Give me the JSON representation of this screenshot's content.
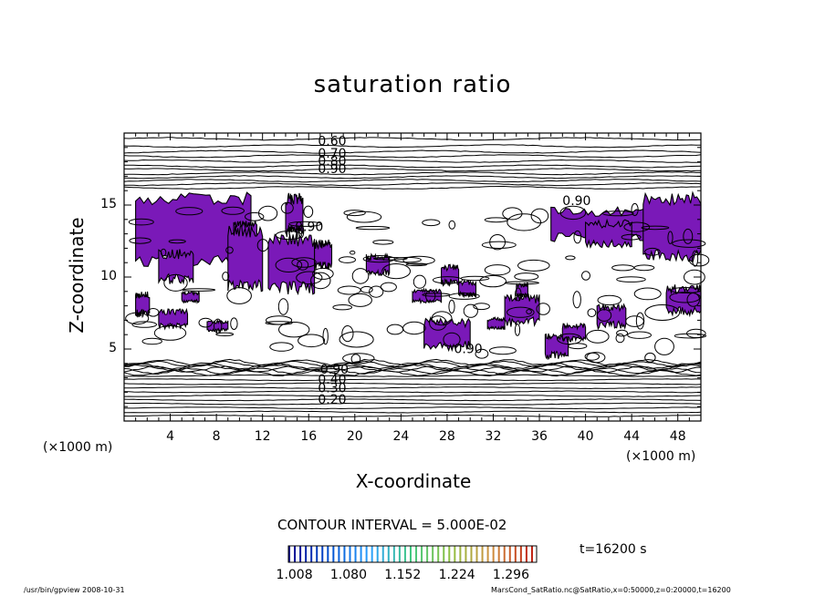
{
  "chart_data": {
    "type": "contour",
    "title": "saturation ratio",
    "xlabel": "X-coordinate",
    "ylabel": "Z-coordinate",
    "x_unit": "(×1000 m)",
    "y_unit": "(×1000 m)",
    "xlim": [
      0,
      50
    ],
    "ylim": [
      0,
      20
    ],
    "x_ticks": [
      "4",
      "8",
      "12",
      "16",
      "20",
      "24",
      "28",
      "32",
      "36",
      "40",
      "44",
      "48"
    ],
    "y_ticks": [
      "5",
      "10",
      "15"
    ],
    "contour_interval_text": "CONTOUR INTERVAL = 5.000E-02",
    "contour_labels": [
      "0.60",
      "0.70",
      "0.80",
      "0.90",
      "0.90",
      "0.90",
      "0.90",
      "0.90",
      "0.40",
      "0.30",
      "0.20"
    ],
    "shaded_threshold": 1.0,
    "shade_color": "#7a19b8",
    "colorbar": {
      "ticks": [
        "1.008",
        "1.080",
        "1.152",
        "1.224",
        "1.296"
      ],
      "range": [
        1.0,
        1.33
      ],
      "colors": [
        "#00008c",
        "#0050d0",
        "#2aa0ff",
        "#40c880",
        "#90c040",
        "#d09040",
        "#c02010"
      ]
    },
    "time_label": "t=16200 s"
  },
  "footer": {
    "left": "/usr/bin/gpview   2008-10-31",
    "right": "MarsCond_SatRatio.nc@SatRatio,x=0:50000,z=0:20000,t=16200"
  }
}
